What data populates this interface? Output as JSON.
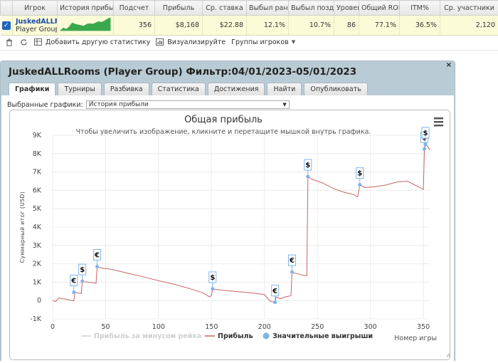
{
  "table": {
    "headers": [
      "Игрок",
      "История прибыли",
      "Подсчет",
      "Прибыль",
      "Ср. ставка",
      "Выбыл рано",
      "Выбыл поздно",
      "Уровень",
      "Общий ROI",
      "ITM%",
      "Ср. участники"
    ],
    "row": {
      "player_name": "JuskedALLRooms",
      "player_group": "Player Group",
      "count": "356",
      "profit": "$8,168",
      "avg_stake": "$22.88",
      "early_out": "12.1%",
      "late_out": "10.7%",
      "level": "86",
      "total_roi": "77.1%",
      "itm": "36.5%",
      "avg_participants": "2,120"
    }
  },
  "toolbar": {
    "add_stats_label": "Добавить другую статистику",
    "visualize_label": "Визуализируйте",
    "player_groups_label": "Группы игроков"
  },
  "panel": {
    "title": "JuskedALLRooms (Player Group) Фильтр:04/01/2023-05/01/2023",
    "close_label": "×",
    "tabs": [
      "Графики",
      "Турниры",
      "Разбивка",
      "Статистика",
      "Достижения",
      "Найти",
      "Опубликовать"
    ],
    "active_tab": 0,
    "selected_charts_label": "Выбранные графики:",
    "selected_chart_value": "История прибыли"
  },
  "colors": {
    "profit_line": "#c86464",
    "rake_line": "#d0d0d0",
    "big_wins": "#7fb3ea",
    "sparkline": "#3aa84c",
    "accent": "#1f66c1"
  },
  "chart_data": {
    "type": "line",
    "title": "Общая прибыль",
    "subtitle": "Чтобы увеличить изображение, кликните и перетащите мышкой внутрь графика.",
    "ylabel": "Суммарный итог (USD)",
    "xlabel": "Номер игры",
    "xlim": [
      0,
      356
    ],
    "ylim": [
      -1000,
      9000
    ],
    "x_ticks": [
      0,
      50,
      100,
      150,
      200,
      250,
      300,
      350
    ],
    "y_ticks": [
      -1000,
      0,
      1000,
      2000,
      3000,
      4000,
      5000,
      6000,
      7000,
      8000,
      9000
    ],
    "y_tick_labels": [
      "-1K",
      "0",
      "1K",
      "2K",
      "3K",
      "4K",
      "5K",
      "6K",
      "7K",
      "8K",
      "9K"
    ],
    "legend": [
      "Прибыль за минусом рейка",
      "Прибыль",
      "Значительные выигрыши"
    ],
    "legend_placement": "bottom",
    "series": [
      {
        "name": "Прибыль",
        "points": [
          [
            0,
            0
          ],
          [
            3,
            -50
          ],
          [
            6,
            150
          ],
          [
            9,
            100
          ],
          [
            12,
            80
          ],
          [
            15,
            30
          ],
          [
            18,
            0
          ],
          [
            20,
            -20
          ],
          [
            21,
            450
          ],
          [
            23,
            420
          ],
          [
            25,
            400
          ],
          [
            27,
            380
          ],
          [
            28,
            1050
          ],
          [
            30,
            1020
          ],
          [
            33,
            1000
          ],
          [
            36,
            980
          ],
          [
            39,
            960
          ],
          [
            41,
            940
          ],
          [
            42,
            1850
          ],
          [
            45,
            1780
          ],
          [
            55,
            1700
          ],
          [
            70,
            1500
          ],
          [
            85,
            1300
          ],
          [
            100,
            1080
          ],
          [
            115,
            880
          ],
          [
            130,
            640
          ],
          [
            142,
            420
          ],
          [
            148,
            200
          ],
          [
            150,
            270
          ],
          [
            151,
            630
          ],
          [
            160,
            560
          ],
          [
            175,
            480
          ],
          [
            190,
            400
          ],
          [
            200,
            320
          ],
          [
            205,
            -20
          ],
          [
            208,
            -80
          ],
          [
            210,
            -100
          ],
          [
            211,
            190
          ],
          [
            215,
            100
          ],
          [
            220,
            200
          ],
          [
            225,
            260
          ],
          [
            226,
            1550
          ],
          [
            228,
            1500
          ],
          [
            232,
            1450
          ],
          [
            236,
            1380
          ],
          [
            240,
            1350
          ],
          [
            241,
            6750
          ],
          [
            245,
            6600
          ],
          [
            255,
            6400
          ],
          [
            265,
            6100
          ],
          [
            275,
            5900
          ],
          [
            285,
            5750
          ],
          [
            288,
            5650
          ],
          [
            290,
            6300
          ],
          [
            295,
            6150
          ],
          [
            305,
            6200
          ],
          [
            315,
            6300
          ],
          [
            325,
            6450
          ],
          [
            335,
            6500
          ],
          [
            345,
            6200
          ],
          [
            350,
            6050
          ],
          [
            351,
            8250
          ],
          [
            352,
            8500
          ],
          [
            354,
            8400
          ],
          [
            356,
            8200
          ]
        ]
      }
    ],
    "big_wins": [
      {
        "x": 20,
        "y": 450,
        "symbol": "€"
      },
      {
        "x": 28,
        "y": 1050,
        "symbol": "$"
      },
      {
        "x": 42,
        "y": 1850,
        "symbol": "€"
      },
      {
        "x": 151,
        "y": 630,
        "symbol": "$"
      },
      {
        "x": 210,
        "y": -100,
        "symbol": "€"
      },
      {
        "x": 226,
        "y": 1550,
        "symbol": "€"
      },
      {
        "x": 241,
        "y": 6750,
        "symbol": "$"
      },
      {
        "x": 290,
        "y": 6300,
        "symbol": "$"
      },
      {
        "x": 351,
        "y": 8250,
        "symbol": "$"
      },
      {
        "x": 352,
        "y": 8500,
        "symbol": "$"
      }
    ],
    "sparkline": [
      0,
      0.2,
      0.1,
      0.3,
      0.6,
      0.5,
      0.45,
      0.4,
      0.35,
      0.5,
      0.55,
      0.5,
      0.6,
      0.7,
      0.65,
      0.75,
      0.9,
      1.0
    ]
  }
}
